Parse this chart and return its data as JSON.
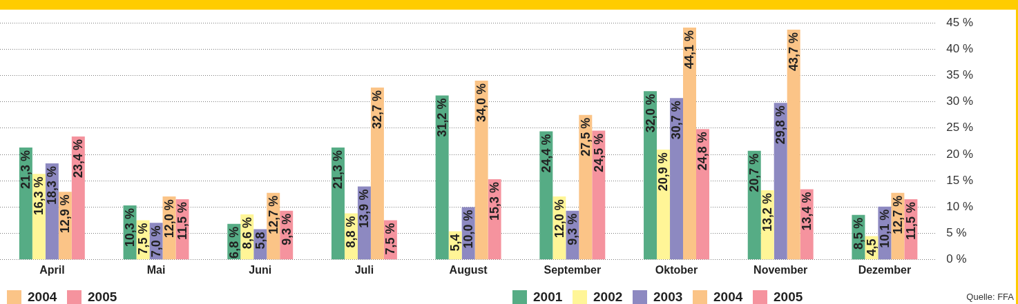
{
  "chart_data": {
    "type": "bar",
    "categories": [
      "April",
      "Mai",
      "Juni",
      "Juli",
      "August",
      "September",
      "Oktober",
      "November",
      "Dezember"
    ],
    "series": [
      {
        "name": "2001",
        "color": "#56ac85",
        "values": [
          21.3,
          10.3,
          6.8,
          21.3,
          31.2,
          24.4,
          32.0,
          20.7,
          8.5
        ],
        "value_labels": [
          "21,3 %",
          "10,3 %",
          "6,8 %",
          "21,3 %",
          "31,2 %",
          "24,4 %",
          "32,0 %",
          "20,7 %",
          "8,5 %"
        ]
      },
      {
        "name": "2002",
        "color": "#fff597",
        "values": [
          16.3,
          7.5,
          8.6,
          8.8,
          5.4,
          12.0,
          20.9,
          13.2,
          4.5
        ],
        "value_labels": [
          "16,3 %",
          "7,5 %",
          "8,6 %",
          "8,8 %",
          "5,4",
          "12,0 %",
          "20,9 %",
          "13,2 %",
          "4,5"
        ]
      },
      {
        "name": "2003",
        "color": "#8d89c1",
        "values": [
          18.3,
          7.0,
          5.8,
          13.9,
          10.0,
          9.3,
          30.7,
          29.8,
          10.1
        ],
        "value_labels": [
          "18,3 %",
          "7,0 %",
          "5,8",
          "13,9 %",
          "10,0 %",
          "9,3 %",
          "30,7 %",
          "29,8 %",
          "10,1 %"
        ]
      },
      {
        "name": "2004",
        "color": "#fbc487",
        "values": [
          12.9,
          12.0,
          12.7,
          32.7,
          34.0,
          27.5,
          44.1,
          43.7,
          12.7
        ],
        "value_labels": [
          "12,9 %",
          "12,0 %",
          "12,7 %",
          "32,7 %",
          "34,0 %",
          "27,5 %",
          "44,1 %",
          "43,7 %",
          "12,7 %"
        ]
      },
      {
        "name": "2005",
        "color": "#f5939e",
        "values": [
          23.4,
          11.5,
          9.3,
          7.5,
          15.3,
          24.5,
          24.8,
          13.4,
          11.5
        ],
        "value_labels": [
          "23,4 %",
          "11,5 %",
          "9,3 %",
          "7,5 %",
          "15,3 %",
          "24,5 %",
          "24,8 %",
          "13,4 %",
          "11,5 %"
        ]
      }
    ],
    "ylim": [
      0,
      45
    ],
    "yticks": [
      {
        "value": 0,
        "label": "0 %"
      },
      {
        "value": 5,
        "label": "5 %"
      },
      {
        "value": 10,
        "label": "10 %"
      },
      {
        "value": 15,
        "label": "15 %"
      },
      {
        "value": 20,
        "label": "20 %"
      },
      {
        "value": 25,
        "label": "25 %"
      },
      {
        "value": 30,
        "label": "30 %"
      },
      {
        "value": 35,
        "label": "35 %"
      },
      {
        "value": 40,
        "label": "40 %"
      },
      {
        "value": 45,
        "label": "45 %"
      }
    ],
    "grid": "y",
    "legend": "bottom right",
    "annotations": [
      "Quelle: FFA"
    ]
  }
}
